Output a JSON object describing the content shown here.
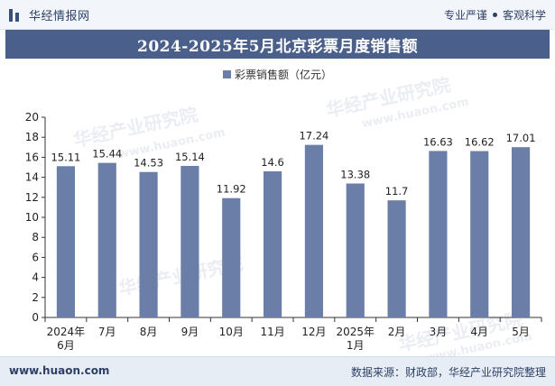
{
  "header": {
    "brand": "华经情报网",
    "tag1": "专业严谨",
    "tag2": "客观科学"
  },
  "title": "2024-2025年5月北京彩票月度销售额",
  "legend_label": "彩票销售额（亿元）",
  "watermark": {
    "name": "华经产业研究院",
    "url": "www.huaon.com"
  },
  "footer": {
    "url": "www.huaon.com",
    "source": "数据来源：财政部，华经产业研究院整理"
  },
  "colors": {
    "bar": "#6b7ea8",
    "title_bg": "#4a5f8a",
    "axis": "#333333"
  },
  "chart_data": {
    "type": "bar",
    "categories": [
      "2024年\n6月",
      "7月",
      "8月",
      "9月",
      "10月",
      "11月",
      "12月",
      "2025年\n1月",
      "2月",
      "3月",
      "4月",
      "5月"
    ],
    "series": [
      {
        "name": "彩票销售额（亿元）",
        "values": [
          15.11,
          15.44,
          14.53,
          15.14,
          11.92,
          14.6,
          17.24,
          13.38,
          11.7,
          16.63,
          16.62,
          17.01
        ]
      }
    ],
    "value_labels": [
      "15.11",
      "15.44",
      "14.53",
      "15.14",
      "11.92",
      "14.6",
      "17.24",
      "13.38",
      "11.7",
      "16.63",
      "16.62",
      "17.01"
    ],
    "yticks": [
      0,
      2,
      4,
      6,
      8,
      10,
      12,
      14,
      16,
      18,
      20
    ],
    "ylim": [
      0,
      20
    ],
    "grid": false,
    "legend_position": "top-center"
  }
}
